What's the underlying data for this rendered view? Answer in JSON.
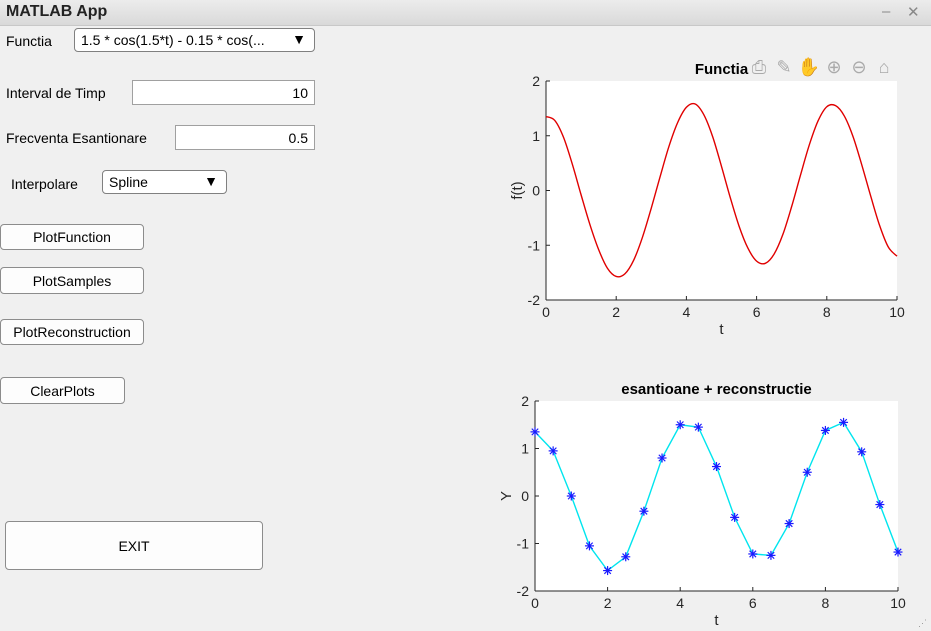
{
  "window": {
    "title": "MATLAB App",
    "minimize_glyph": "–",
    "close_glyph": "✕"
  },
  "controls": {
    "functia_label": "Functia",
    "functia_value": "1.5 * cos(1.5*t) - 0.15 * cos(...",
    "interval_label": "Interval de Timp",
    "interval_value": "10",
    "frecventa_label": "Frecventa Esantionare",
    "frecventa_value": "0.5",
    "interpolare_label": "Interpolare",
    "interpolare_value": "Spline",
    "dropdown_arrow": "▼"
  },
  "buttons": {
    "plot_function": "PlotFunction",
    "plot_samples": "PlotSamples",
    "plot_reconstruction": "PlotReconstruction",
    "clear_plots": "ClearPlots",
    "exit": "EXIT"
  },
  "axes_toolbar": {
    "icons": [
      "export-icon",
      "brush-icon",
      "pan-icon",
      "zoom-in-icon",
      "zoom-out-icon",
      "home-icon"
    ]
  },
  "chart_data": [
    {
      "type": "line",
      "title": "Functia",
      "xlabel": "t",
      "ylabel": "f(t)",
      "xlim": [
        0,
        10
      ],
      "ylim": [
        -2,
        2
      ],
      "xticks": [
        0,
        2,
        4,
        6,
        8,
        10
      ],
      "yticks": [
        -2,
        -1,
        0,
        1,
        2
      ],
      "grid": false,
      "series": [
        {
          "name": "f(t)",
          "color": "#e00000",
          "x": [
            0,
            0.25,
            0.5,
            0.75,
            1,
            1.25,
            1.5,
            1.75,
            2,
            2.25,
            2.5,
            2.75,
            3,
            3.25,
            3.5,
            3.75,
            4,
            4.25,
            4.5,
            4.75,
            5,
            5.25,
            5.5,
            5.75,
            6,
            6.25,
            6.5,
            6.75,
            7,
            7.25,
            7.5,
            7.75,
            8,
            8.25,
            8.5,
            8.75,
            9,
            9.25,
            9.5,
            9.75,
            10
          ],
          "y": [
            1.35,
            1.28,
            0.97,
            0.48,
            -0.08,
            -0.62,
            -1.08,
            -1.42,
            -1.57,
            -1.52,
            -1.27,
            -0.85,
            -0.32,
            0.25,
            0.8,
            1.24,
            1.52,
            1.58,
            1.38,
            0.98,
            0.44,
            -0.13,
            -0.65,
            -1.05,
            -1.29,
            -1.33,
            -1.16,
            -0.8,
            -0.29,
            0.28,
            0.83,
            1.27,
            1.53,
            1.55,
            1.36,
            0.98,
            0.46,
            -0.1,
            -0.63,
            -1.03,
            -1.2
          ]
        }
      ]
    },
    {
      "type": "line",
      "title": "esantioane + reconstructie",
      "xlabel": "t",
      "ylabel": "Y",
      "xlim": [
        0,
        10
      ],
      "ylim": [
        -2,
        2
      ],
      "xticks": [
        0,
        2,
        4,
        6,
        8,
        10
      ],
      "yticks": [
        -2,
        -1,
        0,
        1,
        2
      ],
      "grid": false,
      "series": [
        {
          "name": "reconstructie",
          "color": "#00e5ee",
          "x": [
            0,
            0.5,
            1,
            1.5,
            2,
            2.5,
            3,
            3.5,
            4,
            4.5,
            5,
            5.5,
            6,
            6.5,
            7,
            7.5,
            8,
            8.5,
            9,
            9.5,
            10
          ],
          "y": [
            1.35,
            0.95,
            0.0,
            -1.05,
            -1.57,
            -1.28,
            -0.32,
            0.8,
            1.5,
            1.45,
            0.62,
            -0.45,
            -1.22,
            -1.25,
            -0.58,
            0.5,
            1.38,
            1.55,
            0.93,
            -0.18,
            -1.18
          ]
        },
        {
          "name": "esantioane",
          "color": "#1a1aff",
          "marker": "*",
          "x": [
            0,
            0.5,
            1,
            1.5,
            2,
            2.5,
            3,
            3.5,
            4,
            4.5,
            5,
            5.5,
            6,
            6.5,
            7,
            7.5,
            8,
            8.5,
            9,
            9.5,
            10
          ],
          "y": [
            1.35,
            0.95,
            0.0,
            -1.05,
            -1.57,
            -1.28,
            -0.32,
            0.8,
            1.5,
            1.45,
            0.62,
            -0.45,
            -1.22,
            -1.25,
            -0.58,
            0.5,
            1.38,
            1.55,
            0.93,
            -0.18,
            -1.18
          ]
        }
      ]
    }
  ]
}
